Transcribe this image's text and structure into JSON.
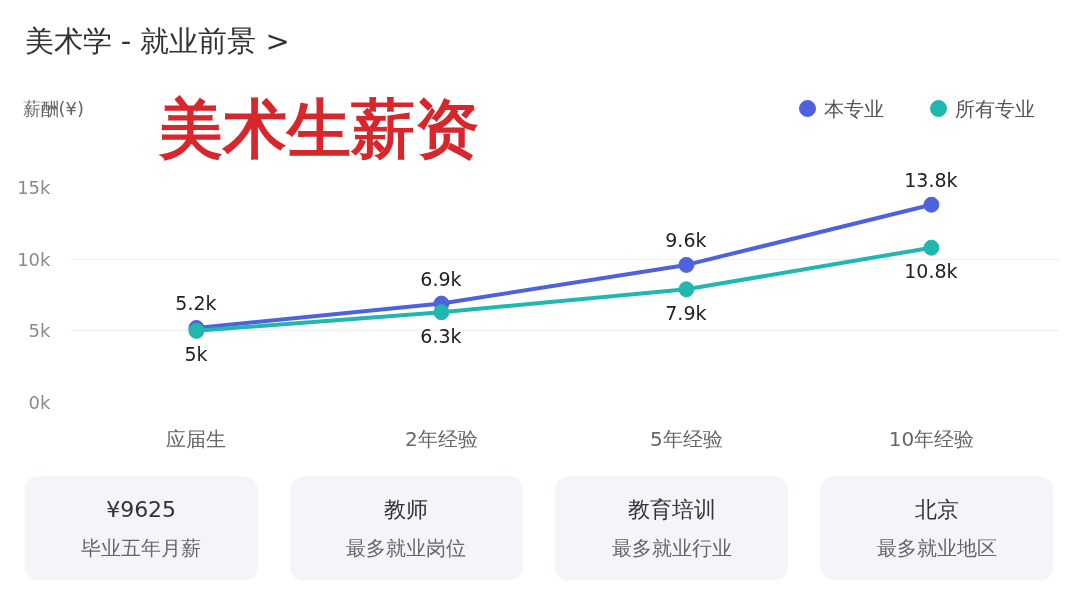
{
  "chart_data": {
    "type": "line",
    "title": "美术学 - 就业前景 >",
    "ylabel": "薪酬(¥)",
    "categories": [
      "应届生",
      "2年经验",
      "5年经验",
      "10年经验"
    ],
    "series": [
      {
        "name": "本专业",
        "color": "#4f62de",
        "values": [
          5200,
          6900,
          9600,
          13800
        ],
        "value_labels": [
          "5.2k",
          "6.9k",
          "9.6k",
          "13.8k"
        ]
      },
      {
        "name": "所有专业",
        "color": "#20b7ae",
        "values": [
          5000,
          6300,
          7900,
          10800
        ],
        "value_labels": [
          "5k",
          "6.3k",
          "7.9k",
          "10.8k"
        ]
      }
    ],
    "ylim": [
      0,
      15000
    ],
    "yticks": [
      {
        "value": 0,
        "label": "0k"
      },
      {
        "value": 5000,
        "label": "5k"
      },
      {
        "value": 10000,
        "label": "10k"
      },
      {
        "value": 15000,
        "label": "15k"
      }
    ],
    "grid": "y",
    "legend": "top right",
    "marker": "circle",
    "line_style": "solid",
    "annotations": [
      "美术生薪资",
      "¥9625",
      "毕业五年月薪",
      "教师",
      "最多就业岗位",
      "教育培训",
      "最多就业行业",
      "北京",
      "最多就业地区"
    ]
  }
}
